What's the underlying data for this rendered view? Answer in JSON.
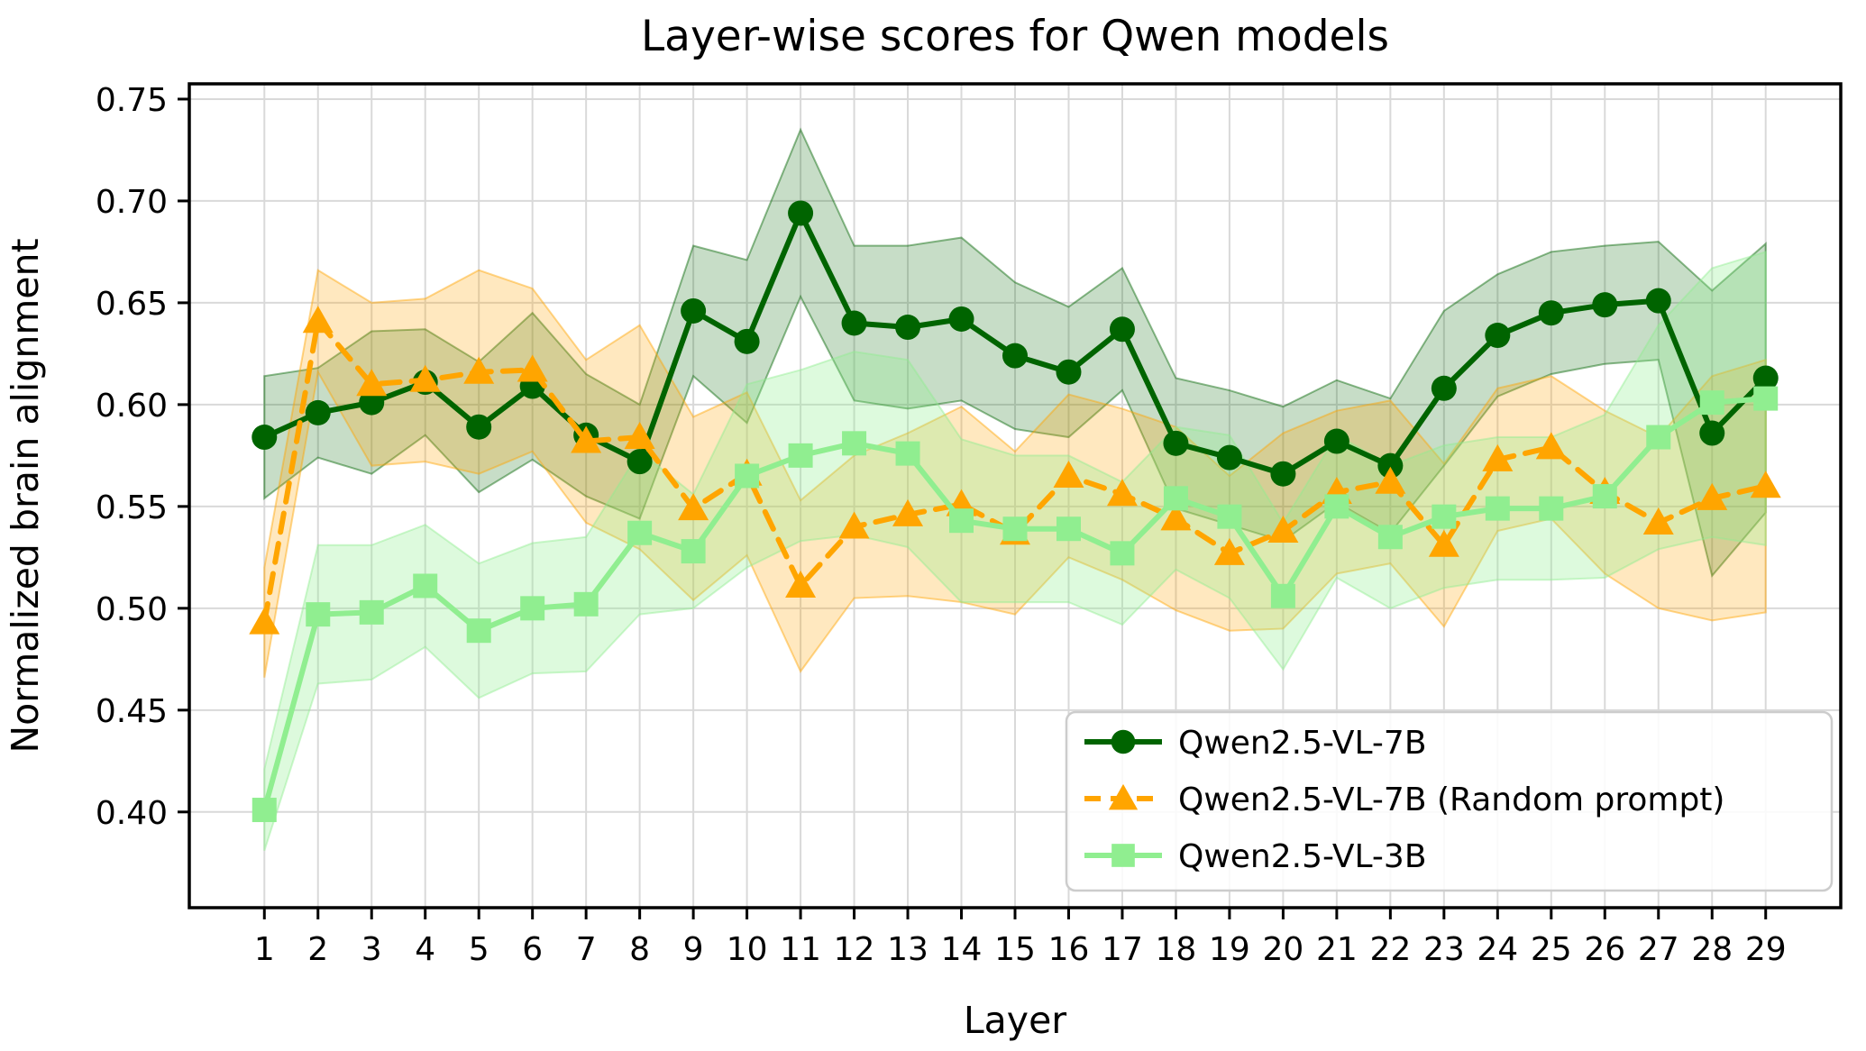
{
  "title": "Layer-wise scores for Qwen models",
  "chart_data": {
    "type": "line",
    "title": "Layer-wise scores for Qwen models",
    "xlabel": "Layer",
    "ylabel": "Normalized brain alignment",
    "grid": true,
    "legend_position": "lower right",
    "x": [
      1,
      2,
      3,
      4,
      5,
      6,
      7,
      8,
      9,
      10,
      11,
      12,
      13,
      14,
      15,
      16,
      17,
      18,
      19,
      20,
      21,
      22,
      23,
      24,
      25,
      26,
      27,
      28,
      29
    ],
    "xticklabels": [
      "1",
      "2",
      "3",
      "4",
      "5",
      "6",
      "7",
      "8",
      "9",
      "10",
      "11",
      "12",
      "13",
      "14",
      "15",
      "16",
      "17",
      "18",
      "19",
      "20",
      "21",
      "22",
      "23",
      "24",
      "25",
      "26",
      "27",
      "28",
      "29"
    ],
    "yticks": [
      0.4,
      0.45,
      0.5,
      0.55,
      0.6,
      0.65,
      0.7,
      0.75
    ],
    "ylim": [
      0.353,
      0.7575
    ],
    "xlim": [
      -0.4,
      30.4
    ],
    "grid_color": "#d9d9d9",
    "series": [
      {
        "name": "Qwen2.5-VL-7B",
        "color": "#006400",
        "linestyle": "solid",
        "marker": "circle",
        "band_alpha": 0.22,
        "values": [
          0.584,
          0.596,
          0.601,
          0.611,
          0.589,
          0.609,
          0.585,
          0.572,
          0.646,
          0.631,
          0.694,
          0.64,
          0.638,
          0.642,
          0.624,
          0.616,
          0.637,
          0.581,
          0.574,
          0.566,
          0.582,
          0.57,
          0.608,
          0.634,
          0.645,
          0.649,
          0.651,
          0.586,
          0.613
        ],
        "band_halfwidth": [
          0.03,
          0.022,
          0.035,
          0.026,
          0.032,
          0.036,
          0.03,
          0.028,
          0.032,
          0.04,
          0.041,
          0.038,
          0.04,
          0.04,
          0.036,
          0.032,
          0.03,
          0.032,
          0.033,
          0.033,
          0.03,
          0.033,
          0.038,
          0.03,
          0.03,
          0.029,
          0.029,
          0.07,
          0.066
        ]
      },
      {
        "name": "Qwen2.5-VL-7B (Random prompt)",
        "color": "#FFA500",
        "linestyle": "dashed",
        "marker": "triangle-up",
        "band_alpha": 0.25,
        "values": [
          0.493,
          0.641,
          0.61,
          0.612,
          0.616,
          0.617,
          0.582,
          0.584,
          0.549,
          0.566,
          0.511,
          0.54,
          0.546,
          0.551,
          0.537,
          0.565,
          0.556,
          0.544,
          0.527,
          0.538,
          0.557,
          0.562,
          0.531,
          0.573,
          0.579,
          0.557,
          0.542,
          0.554,
          0.56
        ],
        "band_halfwidth": [
          0.027,
          0.025,
          0.04,
          0.04,
          0.05,
          0.04,
          0.04,
          0.055,
          0.045,
          0.04,
          0.042,
          0.035,
          0.04,
          0.048,
          0.04,
          0.04,
          0.042,
          0.045,
          0.038,
          0.048,
          0.04,
          0.04,
          0.04,
          0.035,
          0.035,
          0.04,
          0.042,
          0.06,
          0.062
        ]
      },
      {
        "name": "Qwen2.5-VL-3B",
        "color": "#90EE90",
        "linestyle": "solid",
        "marker": "square",
        "band_alpha": 0.3,
        "values": [
          0.401,
          0.497,
          0.498,
          0.511,
          0.489,
          0.5,
          0.502,
          0.537,
          0.528,
          0.565,
          0.575,
          0.581,
          0.576,
          0.543,
          0.539,
          0.539,
          0.527,
          0.554,
          0.545,
          0.506,
          0.55,
          0.535,
          0.545,
          0.549,
          0.549,
          0.555,
          0.584,
          0.601,
          0.603
        ],
        "band_halfwidth": [
          0.02,
          0.034,
          0.033,
          0.03,
          0.033,
          0.032,
          0.033,
          0.04,
          0.028,
          0.045,
          0.042,
          0.045,
          0.046,
          0.04,
          0.036,
          0.036,
          0.035,
          0.035,
          0.04,
          0.036,
          0.035,
          0.035,
          0.035,
          0.035,
          0.035,
          0.04,
          0.055,
          0.066,
          0.072
        ]
      }
    ]
  }
}
